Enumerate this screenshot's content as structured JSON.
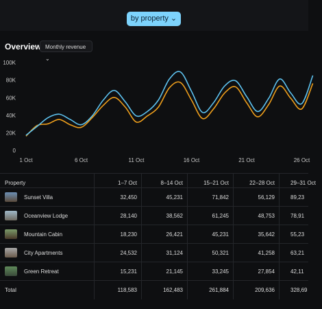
{
  "header": {
    "button": "by property"
  },
  "overview": {
    "title": "Overview",
    "dropdown": "Monthly revenue"
  },
  "chart_data": {
    "type": "line",
    "categories": [
      "1 Oct",
      null,
      null,
      null,
      null,
      "6 Oct",
      null,
      null,
      null,
      null,
      "11 Oct",
      null,
      null,
      null,
      null,
      "16 Oct",
      null,
      null,
      null,
      null,
      "21 Oct",
      null,
      null,
      null,
      null,
      "26 Oct",
      null
    ],
    "series": [
      {
        "color": "#5ec3f0",
        "values": [
          18000,
          28000,
          38000,
          42000,
          36000,
          30000,
          40000,
          58000,
          69000,
          56000,
          40000,
          45000,
          58000,
          82000,
          90000,
          68000,
          44000,
          55000,
          74000,
          80000,
          62000,
          45000,
          60000,
          82000,
          66000,
          54000,
          86000
        ]
      },
      {
        "color": "#f0a01c",
        "values": [
          17000,
          29000,
          31000,
          36000,
          30000,
          27000,
          38000,
          52000,
          61000,
          50000,
          33000,
          40000,
          50000,
          72000,
          78000,
          58000,
          37000,
          48000,
          66000,
          73000,
          55000,
          39000,
          53000,
          74000,
          60000,
          48000,
          77000
        ]
      }
    ],
    "ylim": [
      0,
      100000
    ],
    "yticks": [
      0,
      {
        "value": 20000,
        "label": "20K"
      },
      {
        "value": 40000,
        "label": "40K"
      },
      {
        "value": 60000,
        "label": "60K"
      },
      {
        "value": 80000,
        "label": "80K"
      },
      {
        "value": 100000,
        "label": "100K"
      }
    ],
    "grid": false
  },
  "table": {
    "columns": [
      "Property",
      "1–7 Oct",
      "8–14 Oct",
      "15–21 Oct",
      "22–28 Oct",
      "29–31 Oct"
    ],
    "rows": [
      [
        "Sunset Villa",
        "32,450",
        "45,231",
        "71,842",
        "56,129",
        "89,23"
      ],
      [
        "Oceanview Lodge",
        "28,140",
        "38,562",
        "61,245",
        "48,753",
        "78,91"
      ],
      [
        "Mountain Cabin",
        "18,230",
        "26,421",
        "45,231",
        "35,642",
        "55,23"
      ],
      [
        "City Apartments",
        "24,532",
        "31,124",
        "50,321",
        "41,258",
        "63,21"
      ],
      [
        "Green Retreat",
        "15,231",
        "21,145",
        "33,245",
        "27,854",
        "42,11"
      ]
    ],
    "total": [
      "Total",
      "118,583",
      "162,483",
      "261,884",
      "209,636",
      "328,69"
    ]
  }
}
